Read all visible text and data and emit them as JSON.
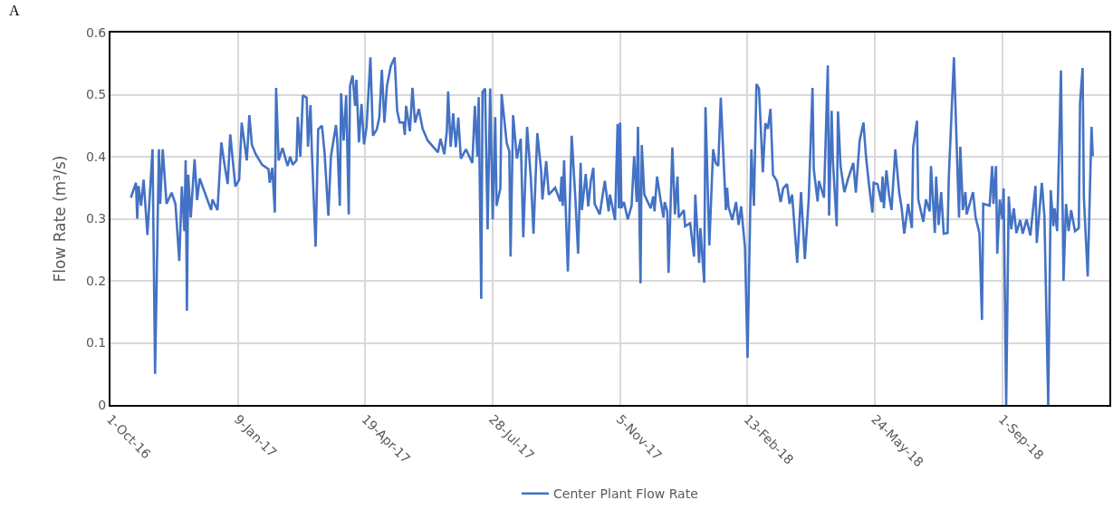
{
  "chart_data": {
    "type": "line",
    "xlabel": null,
    "ylabel": "Flow Rate (m³/s)",
    "annotations": [
      "A"
    ],
    "xlim": [
      "2016-10-01",
      "2018-11-24"
    ],
    "xticks": [
      {
        "value": "2016-10-01",
        "label": "1-Oct-16"
      },
      {
        "value": "2017-01-09",
        "label": "9-Jan-17"
      },
      {
        "value": "2017-04-19",
        "label": "19-Apr-17"
      },
      {
        "value": "2017-07-28",
        "label": "28-Jul-17"
      },
      {
        "value": "2017-11-05",
        "label": "5-Nov-17"
      },
      {
        "value": "2018-02-13",
        "label": "13-Feb-18"
      },
      {
        "value": "2018-05-24",
        "label": "24-May-18"
      },
      {
        "value": "2018-09-01",
        "label": "1-Sep-18"
      }
    ],
    "ylim": [
      0,
      0.6
    ],
    "yticks": [
      0,
      0.1,
      0.2,
      0.3,
      0.4,
      0.5,
      0.6
    ],
    "grid": true,
    "legend": "bottom",
    "marker": "none",
    "line_style": "solid",
    "series": [
      {
        "name": "Center Plant Flow Rate",
        "color": "#4472c4",
        "x": [
          "2016-10-17",
          "2016-10-21",
          "2016-10-22",
          "2016-10-23",
          "2016-10-25",
          "2016-10-27",
          "2016-10-30",
          "2016-11-03",
          "2016-11-05",
          "2016-11-08",
          "2016-11-09",
          "2016-11-11",
          "2016-11-14",
          "2016-11-18",
          "2016-11-21",
          "2016-11-24",
          "2016-11-26",
          "2016-11-28",
          "2016-11-29",
          "2016-11-30",
          "2016-12-01",
          "2016-12-03",
          "2016-12-06",
          "2016-12-08",
          "2016-12-10",
          "2016-12-19",
          "2016-12-20",
          "2016-12-24",
          "2016-12-27",
          "2016-12-29",
          "2017-01-01",
          "2017-01-03",
          "2017-01-07",
          "2017-01-10",
          "2017-01-12",
          "2017-01-16",
          "2017-01-18",
          "2017-01-20",
          "2017-01-23",
          "2017-01-28",
          "2017-02-02",
          "2017-02-03",
          "2017-02-05",
          "2017-02-07",
          "2017-02-08",
          "2017-02-10",
          "2017-02-13",
          "2017-02-17",
          "2017-02-19",
          "2017-02-21",
          "2017-02-24",
          "2017-02-25",
          "2017-02-27",
          "2017-03-01",
          "2017-03-04",
          "2017-03-05",
          "2017-03-07",
          "2017-03-08",
          "2017-03-11",
          "2017-03-13",
          "2017-03-16",
          "2017-03-18",
          "2017-03-21",
          "2017-03-23",
          "2017-03-25",
          "2017-03-27",
          "2017-03-28",
          "2017-03-30",
          "2017-03-31",
          "2017-04-02",
          "2017-04-04",
          "2017-04-06",
          "2017-04-07",
          "2017-04-09",
          "2017-04-11",
          "2017-04-12",
          "2017-04-14",
          "2017-04-16",
          "2017-04-18",
          "2017-04-20",
          "2017-04-23",
          "2017-04-25",
          "2017-04-28",
          "2017-04-30",
          "2017-05-02",
          "2017-05-04",
          "2017-05-06",
          "2017-05-09",
          "2017-05-12",
          "2017-05-14",
          "2017-05-16",
          "2017-05-19",
          "2017-05-20",
          "2017-05-21",
          "2017-05-24",
          "2017-05-26",
          "2017-05-28",
          "2017-05-31",
          "2017-06-03",
          "2017-06-07",
          "2017-06-15",
          "2017-06-17",
          "2017-06-20",
          "2017-06-22",
          "2017-06-23",
          "2017-06-25",
          "2017-06-27",
          "2017-06-29",
          "2017-07-01",
          "2017-07-03",
          "2017-07-07",
          "2017-07-12",
          "2017-07-14",
          "2017-07-16",
          "2017-07-17",
          "2017-07-19",
          "2017-07-20",
          "2017-07-22",
          "2017-07-24",
          "2017-07-26",
          "2017-07-28",
          "2017-07-30",
          "2017-07-31",
          "2017-08-03",
          "2017-08-04",
          "2017-08-08",
          "2017-08-10",
          "2017-08-11",
          "2017-08-13",
          "2017-08-16",
          "2017-08-19",
          "2017-08-21",
          "2017-08-24",
          "2017-08-27",
          "2017-08-29",
          "2017-09-01",
          "2017-09-04",
          "2017-09-05",
          "2017-09-08",
          "2017-09-10",
          "2017-09-15",
          "2017-09-19",
          "2017-09-20",
          "2017-09-21",
          "2017-09-22",
          "2017-09-25",
          "2017-09-28",
          "2017-10-01",
          "2017-10-03",
          "2017-10-05",
          "2017-10-06",
          "2017-10-09",
          "2017-10-11",
          "2017-10-13",
          "2017-10-15",
          "2017-10-16",
          "2017-10-20",
          "2017-10-24",
          "2017-10-27",
          "2017-10-28",
          "2017-11-01",
          "2017-11-03",
          "2017-11-04",
          "2017-11-05",
          "2017-11-06",
          "2017-11-08",
          "2017-11-11",
          "2017-11-14",
          "2017-11-16",
          "2017-11-18",
          "2017-11-19",
          "2017-11-21",
          "2017-11-22",
          "2017-11-24",
          "2017-11-29",
          "2017-12-01",
          "2017-12-02",
          "2017-12-04",
          "2017-12-07",
          "2017-12-09",
          "2017-12-10",
          "2017-12-12",
          "2017-12-13",
          "2017-12-16",
          "2017-12-18",
          "2017-12-20",
          "2017-12-21",
          "2017-12-25",
          "2017-12-26",
          "2017-12-30",
          "2018-01-02",
          "2018-01-03",
          "2018-01-06",
          "2018-01-07",
          "2018-01-10",
          "2018-01-11",
          "2018-01-14",
          "2018-01-17",
          "2018-01-19",
          "2018-01-21",
          "2018-01-23",
          "2018-01-27",
          "2018-01-28",
          "2018-01-29",
          "2018-02-01",
          "2018-02-04",
          "2018-02-06",
          "2018-02-08",
          "2018-02-11",
          "2018-02-13",
          "2018-02-16",
          "2018-02-18",
          "2018-02-20",
          "2018-02-22",
          "2018-02-25",
          "2018-02-27",
          "2018-03-01",
          "2018-03-03",
          "2018-03-05",
          "2018-03-08",
          "2018-03-11",
          "2018-03-13",
          "2018-03-16",
          "2018-03-18",
          "2018-03-20",
          "2018-03-24",
          "2018-03-27",
          "2018-03-30",
          "2018-04-02",
          "2018-04-05",
          "2018-04-06",
          "2018-04-09",
          "2018-04-10",
          "2018-04-14",
          "2018-04-17",
          "2018-04-18",
          "2018-04-20",
          "2018-04-21",
          "2018-04-24",
          "2018-04-25",
          "2018-04-27",
          "2018-04-30",
          "2018-05-03",
          "2018-05-07",
          "2018-05-09",
          "2018-05-12",
          "2018-05-15",
          "2018-05-17",
          "2018-05-19",
          "2018-05-22",
          "2018-05-23",
          "2018-05-26",
          "2018-05-29",
          "2018-05-30",
          "2018-05-31",
          "2018-06-02",
          "2018-06-04",
          "2018-06-06",
          "2018-06-09",
          "2018-06-12",
          "2018-06-14",
          "2018-06-16",
          "2018-06-19",
          "2018-06-22",
          "2018-06-23",
          "2018-06-26",
          "2018-06-27",
          "2018-07-01",
          "2018-07-03",
          "2018-07-06",
          "2018-07-07",
          "2018-07-10",
          "2018-07-11",
          "2018-07-13",
          "2018-07-15",
          "2018-07-17",
          "2018-07-20",
          "2018-07-21",
          "2018-07-25",
          "2018-07-28",
          "2018-07-29",
          "2018-07-30",
          "2018-08-01",
          "2018-08-03",
          "2018-08-04",
          "2018-08-09",
          "2018-08-11",
          "2018-08-14",
          "2018-08-16",
          "2018-08-17",
          "2018-08-22",
          "2018-08-24",
          "2018-08-25",
          "2018-08-27",
          "2018-08-28",
          "2018-08-30",
          "2018-09-01",
          "2018-09-02",
          "2018-09-04",
          "2018-09-06",
          "2018-09-08",
          "2018-09-10",
          "2018-09-12",
          "2018-09-15",
          "2018-09-17",
          "2018-09-20",
          "2018-09-23",
          "2018-09-27",
          "2018-09-28",
          "2018-10-02",
          "2018-10-04",
          "2018-10-07",
          "2018-10-09",
          "2018-10-11",
          "2018-10-12",
          "2018-10-14",
          "2018-10-17",
          "2018-10-19",
          "2018-10-21",
          "2018-10-23",
          "2018-10-25",
          "2018-10-28",
          "2018-10-31",
          "2018-11-01",
          "2018-11-03",
          "2018-11-04",
          "2018-11-07",
          "2018-11-10",
          "2018-11-11"
        ],
        "values": [
          0.334,
          0.358,
          0.3,
          0.353,
          0.321,
          0.363,
          0.274,
          0.412,
          0.05,
          0.412,
          0.324,
          0.412,
          0.324,
          0.342,
          0.324,
          0.232,
          0.352,
          0.28,
          0.394,
          0.152,
          0.371,
          0.302,
          0.396,
          0.33,
          0.365,
          0.314,
          0.331,
          0.314,
          0.423,
          0.394,
          0.356,
          0.436,
          0.352,
          0.363,
          0.455,
          0.394,
          0.467,
          0.419,
          0.404,
          0.387,
          0.38,
          0.358,
          0.382,
          0.31,
          0.511,
          0.394,
          0.414,
          0.385,
          0.4,
          0.387,
          0.394,
          0.464,
          0.4,
          0.499,
          0.495,
          0.416,
          0.483,
          0.412,
          0.255,
          0.444,
          0.45,
          0.407,
          0.305,
          0.4,
          0.426,
          0.451,
          0.426,
          0.321,
          0.502,
          0.426,
          0.499,
          0.307,
          0.514,
          0.531,
          0.482,
          0.524,
          0.423,
          0.485,
          0.42,
          0.448,
          0.56,
          0.434,
          0.444,
          0.463,
          0.54,
          0.455,
          0.514,
          0.546,
          0.56,
          0.474,
          0.455,
          0.455,
          0.435,
          0.482,
          0.441,
          0.511,
          0.455,
          0.477,
          0.445,
          0.426,
          0.407,
          0.429,
          0.404,
          0.441,
          0.505,
          0.416,
          0.47,
          0.415,
          0.463,
          0.397,
          0.412,
          0.39,
          0.482,
          0.4,
          0.496,
          0.171,
          0.504,
          0.51,
          0.283,
          0.51,
          0.299,
          0.464,
          0.321,
          0.349,
          0.501,
          0.422,
          0.409,
          0.239,
          0.467,
          0.397,
          0.429,
          0.27,
          0.448,
          0.363,
          0.276,
          0.438,
          0.378,
          0.331,
          0.393,
          0.339,
          0.35,
          0.328,
          0.368,
          0.321,
          0.394,
          0.215,
          0.434,
          0.328,
          0.244,
          0.39,
          0.314,
          0.372,
          0.32,
          0.361,
          0.382,
          0.324,
          0.307,
          0.361,
          0.312,
          0.339,
          0.298,
          0.453,
          0.317,
          0.455,
          0.317,
          0.327,
          0.299,
          0.321,
          0.401,
          0.327,
          0.448,
          0.196,
          0.419,
          0.339,
          0.317,
          0.336,
          0.312,
          0.368,
          0.327,
          0.302,
          0.327,
          0.312,
          0.213,
          0.415,
          0.307,
          0.368,
          0.302,
          0.314,
          0.288,
          0.293,
          0.239,
          0.339,
          0.229,
          0.285,
          0.197,
          0.48,
          0.257,
          0.412,
          0.39,
          0.385,
          0.495,
          0.314,
          0.35,
          0.32,
          0.298,
          0.327,
          0.29,
          0.32,
          0.254,
          0.076,
          0.412,
          0.321,
          0.517,
          0.51,
          0.375,
          0.454,
          0.445,
          0.477,
          0.371,
          0.361,
          0.327,
          0.349,
          0.356,
          0.324,
          0.339,
          0.229,
          0.343,
          0.235,
          0.331,
          0.511,
          0.38,
          0.328,
          0.361,
          0.334,
          0.547,
          0.305,
          0.474,
          0.393,
          0.288,
          0.473,
          0.385,
          0.343,
          0.365,
          0.39,
          0.342,
          0.426,
          0.455,
          0.4,
          0.361,
          0.31,
          0.358,
          0.356,
          0.327,
          0.368,
          0.317,
          0.378,
          0.339,
          0.314,
          0.412,
          0.343,
          0.317,
          0.276,
          0.324,
          0.285,
          0.415,
          0.458,
          0.331,
          0.295,
          0.331,
          0.312,
          0.385,
          0.277,
          0.368,
          0.29,
          0.343,
          0.276,
          0.277,
          0.368,
          0.56,
          0.363,
          0.302,
          0.416,
          0.314,
          0.343,
          0.307,
          0.343,
          0.302,
          0.277,
          0.137,
          0.324,
          0.321,
          0.385,
          0.324,
          0.385,
          0.244,
          0.331,
          0.299,
          0.349,
          0.0,
          0.336,
          0.283,
          0.317,
          0.277,
          0.298,
          0.276,
          0.299,
          0.273,
          0.353,
          0.261,
          0.358,
          0.305,
          0.0,
          0.346,
          0.288,
          0.317,
          0.28,
          0.539,
          0.2,
          0.324,
          0.28,
          0.314,
          0.28,
          0.285,
          0.488,
          0.543,
          0.334,
          0.207,
          0.448,
          0.401
        ]
      }
    ]
  }
}
